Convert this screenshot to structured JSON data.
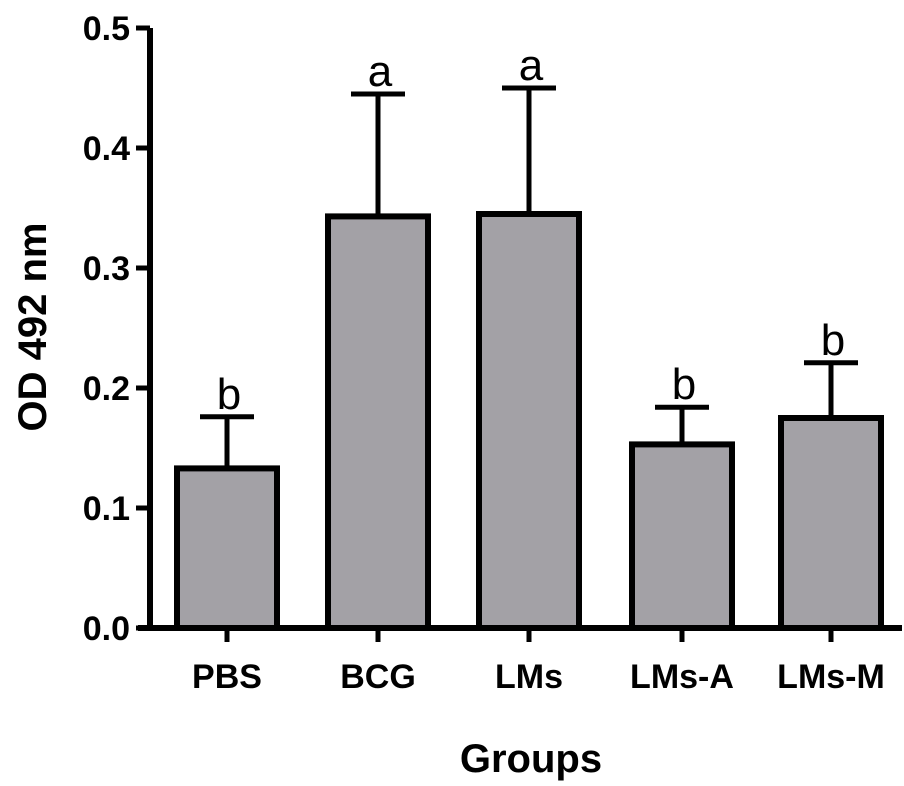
{
  "chart_data": {
    "type": "bar",
    "title": "",
    "xlabel": "Groups",
    "ylabel": "OD 492 nm",
    "ylim": [
      0,
      0.5
    ],
    "yticks": [
      "0.0",
      "0.1",
      "0.2",
      "0.3",
      "0.4",
      "0.5"
    ],
    "ytick_values": [
      0.0,
      0.1,
      0.2,
      0.3,
      0.4,
      0.5
    ],
    "categories": [
      "PBS",
      "BCG",
      "LMs",
      "LMs-A",
      "LMs-M"
    ],
    "values": [
      0.133,
      0.343,
      0.345,
      0.153,
      0.175
    ],
    "error_upper": [
      0.043,
      0.102,
      0.105,
      0.031,
      0.046
    ],
    "annotations": [
      "b",
      "a",
      "a",
      "b",
      "b"
    ],
    "grid": false,
    "legend": "none",
    "bar_color": "#a3a1a6",
    "edge_color": "#000000"
  }
}
